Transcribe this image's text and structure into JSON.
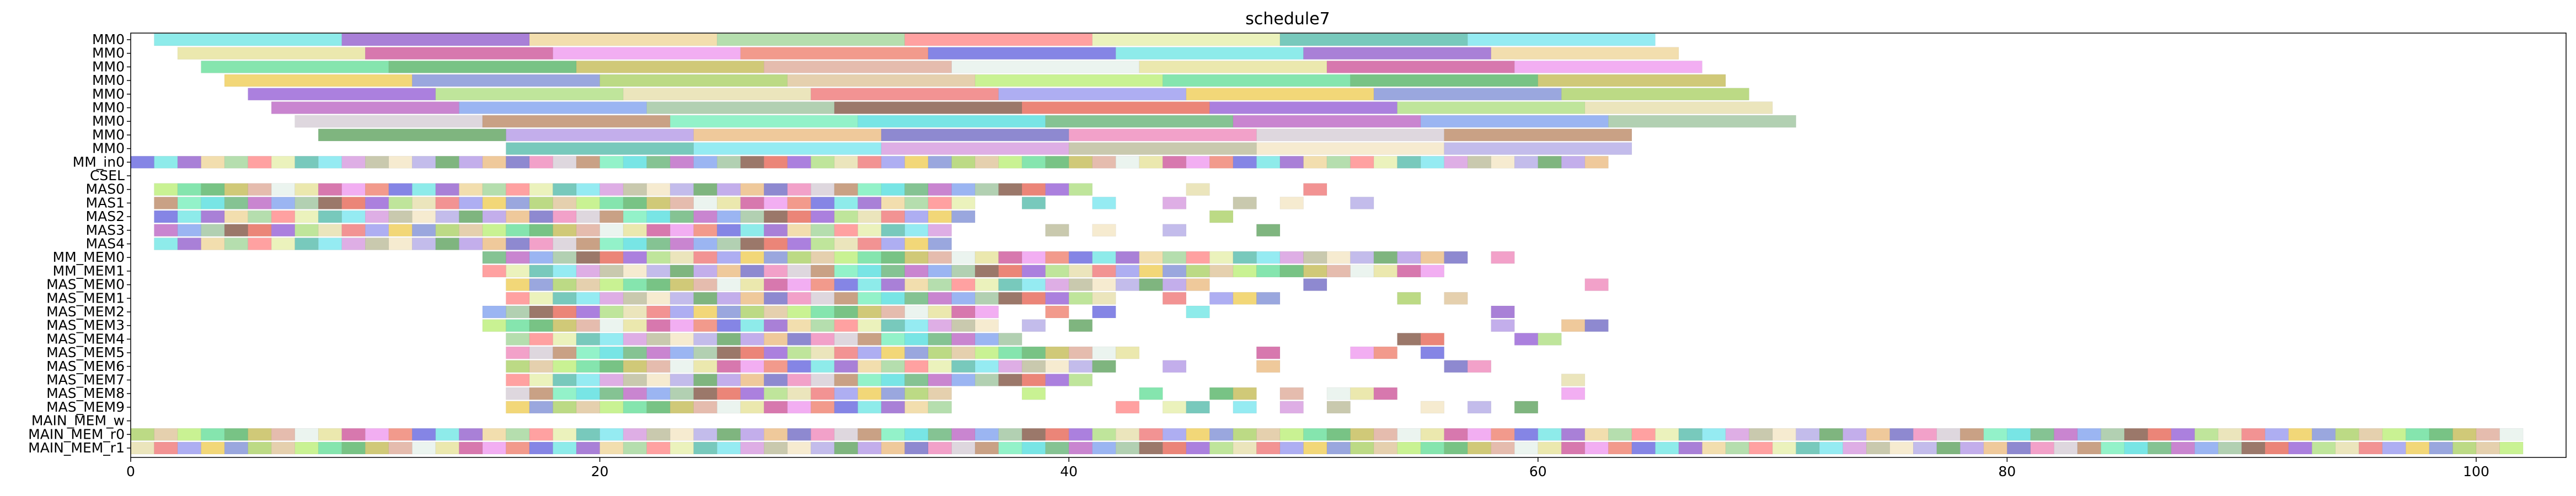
{
  "chart_data": {
    "type": "gantt",
    "title": "schedule7",
    "xlabel": "",
    "ylabel": "",
    "xlim": [
      0,
      102
    ],
    "x_ticks": [
      0,
      20,
      40,
      60,
      80,
      100
    ],
    "rows": [
      "MM0",
      "MM0",
      "MM0",
      "MM0",
      "MM0",
      "MM0",
      "MM0",
      "MM0",
      "MM0",
      "MM_in0",
      "CSEL",
      "MAS0",
      "MAS1",
      "MAS2",
      "MAS3",
      "MAS4",
      "MM_MEM0",
      "MM_MEM1",
      "MAS_MEM0",
      "MAS_MEM1",
      "MAS_MEM2",
      "MAS_MEM3",
      "MAS_MEM4",
      "MAS_MEM5",
      "MAS_MEM6",
      "MAS_MEM7",
      "MAS_MEM8",
      "MAS_MEM9",
      "MAIN_MEM_w",
      "MAIN_MEM_r0",
      "MAIN_MEM_r1"
    ],
    "long_tasks": [
      {
        "row": 0,
        "starts": [
          1,
          9,
          17,
          25,
          33,
          41,
          49,
          57
        ],
        "duration": 8
      },
      {
        "row": 1,
        "starts": [
          2,
          10,
          18,
          26,
          34,
          42,
          50,
          58
        ],
        "duration": 8
      },
      {
        "row": 2,
        "starts": [
          3,
          11,
          19,
          27,
          35,
          43,
          51,
          59
        ],
        "duration": 8
      },
      {
        "row": 3,
        "starts": [
          4,
          12,
          20,
          28,
          36,
          44,
          52,
          60
        ],
        "duration": 8
      },
      {
        "row": 4,
        "starts": [
          5,
          13,
          21,
          29,
          37,
          45,
          53,
          61
        ],
        "duration": 8
      },
      {
        "row": 5,
        "starts": [
          6,
          14,
          22,
          30,
          38,
          46,
          54,
          62
        ],
        "duration": 8
      },
      {
        "row": 6,
        "starts": [
          7,
          15,
          23,
          31,
          39,
          47,
          55,
          63
        ],
        "duration": 8
      },
      {
        "row": 7,
        "starts": [
          8,
          16,
          24,
          32,
          40,
          48,
          56
        ],
        "duration": 8
      },
      {
        "row": 8,
        "starts": [
          16,
          24,
          32,
          40,
          48,
          56
        ],
        "duration": 8
      }
    ],
    "short_tasks": [
      {
        "row": 9,
        "starts": [
          0,
          1,
          2,
          3,
          4,
          5,
          6,
          7,
          8,
          9,
          10,
          11,
          12,
          13,
          14,
          15,
          16,
          17,
          18,
          19,
          20,
          21,
          22,
          23,
          24,
          25,
          26,
          27,
          28,
          29,
          30,
          31,
          32,
          33,
          34,
          35,
          36,
          37,
          38,
          39,
          40,
          41,
          42,
          43,
          44,
          45,
          46,
          47,
          48,
          49,
          50,
          51,
          52,
          53,
          54,
          55,
          56,
          57,
          58,
          59,
          60,
          61,
          62
        ],
        "duration": 1
      },
      {
        "row": 11,
        "starts": [
          1,
          2,
          3,
          4,
          5,
          6,
          7,
          8,
          9,
          10,
          11,
          12,
          13,
          14,
          15,
          16,
          17,
          18,
          19,
          20,
          21,
          22,
          23,
          24,
          25,
          26,
          27,
          28,
          29,
          30,
          31,
          32,
          33,
          34,
          35,
          36,
          37,
          38,
          39,
          40,
          45,
          50
        ],
        "duration": 1
      },
      {
        "row": 12,
        "starts": [
          1,
          2,
          3,
          4,
          5,
          6,
          7,
          8,
          9,
          10,
          11,
          12,
          13,
          14,
          15,
          16,
          17,
          18,
          19,
          20,
          21,
          22,
          23,
          24,
          25,
          26,
          27,
          28,
          29,
          30,
          31,
          32,
          33,
          34,
          35,
          38,
          41,
          44,
          47,
          49,
          52
        ],
        "duration": 1
      },
      {
        "row": 13,
        "starts": [
          1,
          2,
          3,
          4,
          5,
          6,
          7,
          8,
          9,
          10,
          11,
          12,
          13,
          14,
          15,
          16,
          17,
          18,
          19,
          20,
          21,
          22,
          23,
          24,
          25,
          26,
          27,
          28,
          29,
          30,
          31,
          32,
          33,
          34,
          35,
          46
        ],
        "duration": 1
      },
      {
        "row": 14,
        "starts": [
          1,
          2,
          3,
          4,
          5,
          6,
          7,
          8,
          9,
          10,
          11,
          12,
          13,
          14,
          15,
          16,
          17,
          18,
          19,
          20,
          21,
          22,
          23,
          24,
          25,
          26,
          27,
          28,
          29,
          30,
          31,
          32,
          33,
          34,
          39,
          41,
          44,
          48
        ],
        "duration": 1
      },
      {
        "row": 15,
        "starts": [
          1,
          2,
          3,
          4,
          5,
          6,
          7,
          8,
          9,
          10,
          11,
          12,
          13,
          14,
          15,
          16,
          17,
          18,
          19,
          20,
          21,
          22,
          23,
          24,
          25,
          26,
          27,
          28,
          29,
          30,
          31,
          32,
          33,
          34
        ],
        "duration": 1
      },
      {
        "row": 16,
        "starts": [
          15,
          16,
          17,
          18,
          19,
          20,
          21,
          22,
          23,
          24,
          25,
          26,
          27,
          28,
          29,
          30,
          31,
          32,
          33,
          34,
          35,
          36,
          37,
          38,
          39,
          40,
          41,
          42,
          43,
          44,
          45,
          46,
          47,
          48,
          49,
          50,
          51,
          52,
          53,
          54,
          55,
          56,
          58
        ],
        "duration": 1
      },
      {
        "row": 17,
        "starts": [
          15,
          16,
          17,
          18,
          19,
          20,
          21,
          22,
          23,
          24,
          25,
          26,
          27,
          28,
          29,
          30,
          31,
          32,
          33,
          34,
          35,
          36,
          37,
          38,
          39,
          40,
          41,
          42,
          43,
          44,
          45,
          46,
          47,
          48,
          49,
          50,
          51,
          52,
          53,
          54,
          55
        ],
        "duration": 1
      },
      {
        "row": 18,
        "starts": [
          16,
          17,
          18,
          19,
          20,
          21,
          22,
          23,
          24,
          25,
          26,
          27,
          28,
          29,
          30,
          31,
          32,
          33,
          34,
          35,
          36,
          37,
          38,
          39,
          40,
          41,
          42,
          43,
          44,
          45,
          50,
          62
        ],
        "duration": 1
      },
      {
        "row": 19,
        "starts": [
          16,
          17,
          18,
          19,
          20,
          21,
          22,
          23,
          24,
          25,
          26,
          27,
          28,
          29,
          30,
          31,
          32,
          33,
          34,
          35,
          36,
          37,
          38,
          39,
          40,
          41,
          44,
          46,
          47,
          48,
          54,
          56
        ],
        "duration": 1
      },
      {
        "row": 20,
        "starts": [
          15,
          16,
          17,
          18,
          19,
          20,
          21,
          22,
          23,
          24,
          25,
          26,
          27,
          28,
          29,
          30,
          31,
          32,
          33,
          34,
          35,
          36,
          39,
          41,
          45,
          58
        ],
        "duration": 1
      },
      {
        "row": 21,
        "starts": [
          15,
          16,
          17,
          18,
          19,
          20,
          21,
          22,
          23,
          24,
          25,
          26,
          27,
          28,
          29,
          30,
          31,
          32,
          33,
          34,
          35,
          36,
          38,
          40,
          58,
          61,
          62
        ],
        "duration": 1
      },
      {
        "row": 22,
        "starts": [
          16,
          17,
          18,
          19,
          20,
          21,
          22,
          23,
          24,
          25,
          26,
          27,
          28,
          29,
          30,
          31,
          32,
          33,
          34,
          35,
          36,
          37,
          54,
          55,
          59,
          60
        ],
        "duration": 1
      },
      {
        "row": 23,
        "starts": [
          16,
          17,
          18,
          19,
          20,
          21,
          22,
          23,
          24,
          25,
          26,
          27,
          28,
          29,
          30,
          31,
          32,
          33,
          34,
          35,
          36,
          37,
          38,
          39,
          40,
          41,
          42,
          48,
          52,
          53,
          55
        ],
        "duration": 1
      },
      {
        "row": 24,
        "starts": [
          16,
          17,
          18,
          19,
          20,
          21,
          22,
          23,
          24,
          25,
          26,
          27,
          28,
          29,
          30,
          31,
          32,
          33,
          34,
          35,
          36,
          37,
          38,
          39,
          40,
          41,
          44,
          48,
          56,
          57
        ],
        "duration": 1
      },
      {
        "row": 25,
        "starts": [
          16,
          17,
          18,
          19,
          20,
          21,
          22,
          23,
          24,
          25,
          26,
          27,
          28,
          29,
          30,
          31,
          32,
          33,
          34,
          35,
          36,
          37,
          38,
          39,
          40,
          61
        ],
        "duration": 1
      },
      {
        "row": 26,
        "starts": [
          16,
          17,
          18,
          19,
          20,
          21,
          22,
          23,
          24,
          25,
          26,
          27,
          28,
          29,
          30,
          31,
          32,
          33,
          34,
          38,
          43,
          46,
          47,
          49,
          51,
          52,
          53,
          61
        ],
        "duration": 1
      },
      {
        "row": 27,
        "starts": [
          16,
          17,
          18,
          19,
          20,
          21,
          22,
          23,
          24,
          25,
          26,
          27,
          28,
          29,
          30,
          31,
          32,
          33,
          34,
          42,
          44,
          45,
          47,
          49,
          51,
          55,
          57,
          59
        ],
        "duration": 1
      },
      {
        "row": 29,
        "starts": [
          0,
          1,
          2,
          3,
          4,
          5,
          6,
          7,
          8,
          9,
          10,
          11,
          12,
          13,
          14,
          15,
          16,
          17,
          18,
          19,
          20,
          21,
          22,
          23,
          24,
          25,
          26,
          27,
          28,
          29,
          30,
          31,
          32,
          33,
          34,
          35,
          36,
          37,
          38,
          39,
          40,
          41,
          42,
          43,
          44,
          45,
          46,
          47,
          48,
          49,
          50,
          51,
          52,
          53,
          54,
          55,
          56,
          57,
          58,
          59,
          60,
          61,
          62,
          63,
          64,
          65,
          66,
          67,
          68,
          69,
          70,
          71,
          72,
          73,
          74,
          75,
          76,
          77,
          78,
          79,
          80,
          81,
          82,
          83,
          84,
          85,
          86,
          87,
          88,
          89,
          90,
          91,
          92,
          93,
          94,
          95,
          96,
          97,
          98,
          99,
          100,
          101
        ],
        "duration": 1
      },
      {
        "row": 30,
        "starts": [
          0,
          1,
          2,
          3,
          4,
          5,
          6,
          7,
          8,
          9,
          10,
          11,
          12,
          13,
          14,
          15,
          16,
          17,
          18,
          19,
          20,
          21,
          22,
          23,
          24,
          25,
          26,
          27,
          28,
          29,
          30,
          31,
          32,
          33,
          34,
          35,
          36,
          37,
          38,
          39,
          40,
          41,
          42,
          43,
          44,
          45,
          46,
          47,
          48,
          49,
          50,
          51,
          52,
          53,
          54,
          55,
          56,
          57,
          58,
          59,
          60,
          61,
          62,
          63,
          64,
          65,
          66,
          67,
          68,
          69,
          70,
          71,
          72,
          73,
          74,
          75,
          76,
          77,
          78,
          79,
          80,
          81,
          82,
          83,
          84,
          85,
          86,
          87,
          88,
          89,
          90,
          91,
          92,
          93,
          94,
          95,
          96,
          97,
          98,
          99,
          100,
          101
        ],
        "duration": 1
      }
    ],
    "palette": [
      "#7ae8e6",
      "#9c6ad8",
      "#82e8f0",
      "#b0d470",
      "#ecc08a",
      "#e8f2ec",
      "#70b880",
      "#9a6ad0",
      "#b4e08a",
      "#d8a0e0",
      "#e0c8a0",
      "#7a74c8",
      "#e8e4a0",
      "#c070c8",
      "#f0d8a0",
      "#e8e0b0",
      "#c0c0a0",
      "#c0f080",
      "#f090c0",
      "#d060a0",
      "#8aa8f0",
      "#a8d8a0",
      "#f08080",
      "#f4e8c8",
      "#70e0a0",
      "#d8d0d8",
      "#f0a0f0",
      "#a4c8a4",
      "#ff9090",
      "#a0a0f0",
      "#b8b0e8",
      "#60b870",
      "#c09070",
      "#f08878",
      "#8a6050",
      "#e8f0b0",
      "#f0d060",
      "#68a868",
      "#c8c060",
      "#80f0c0",
      "#7070e0",
      "#e87060",
      "#60c0b0",
      "#8898d8",
      "#b8a0e8",
      "#e0b0a0",
      "#60e0e0"
    ],
    "grid": false,
    "legend": "none"
  }
}
